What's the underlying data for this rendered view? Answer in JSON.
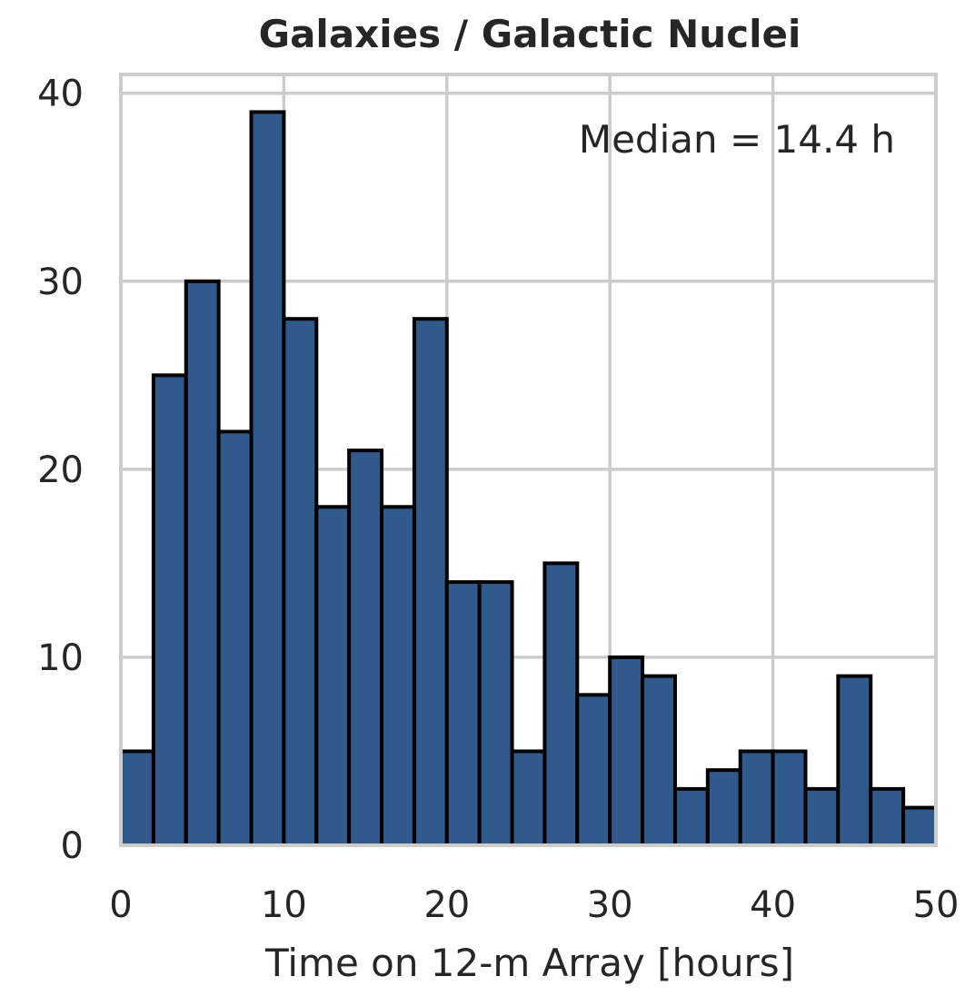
{
  "chart_data": {
    "type": "bar",
    "title": "Galaxies / Galactic Nuclei",
    "xlabel": "Time on 12-m Array  [hours]",
    "ylabel": "",
    "annotation": "Median = 14.4 h",
    "xlim": [
      0,
      50
    ],
    "ylim": [
      0,
      41
    ],
    "x_ticks": [
      0,
      10,
      20,
      30,
      40,
      50
    ],
    "y_ticks": [
      0,
      10,
      20,
      30,
      40
    ],
    "bin_width": 2,
    "bin_edges": [
      0,
      2,
      4,
      6,
      8,
      10,
      12,
      14,
      16,
      18,
      20,
      22,
      24,
      26,
      28,
      30,
      32,
      34,
      36,
      38,
      40,
      42,
      44,
      46,
      48,
      50
    ],
    "values": [
      5,
      25,
      30,
      22,
      39,
      28,
      18,
      21,
      18,
      28,
      14,
      14,
      5,
      15,
      8,
      10,
      9,
      3,
      4,
      5,
      5,
      3,
      9,
      3,
      2
    ],
    "grid": true,
    "colors": {
      "bar_fill": "#30598c",
      "bar_edge": "#000000",
      "grid": "#cccccc",
      "spine": "#cccccc",
      "text": "#262626",
      "background": "#ffffff"
    }
  }
}
